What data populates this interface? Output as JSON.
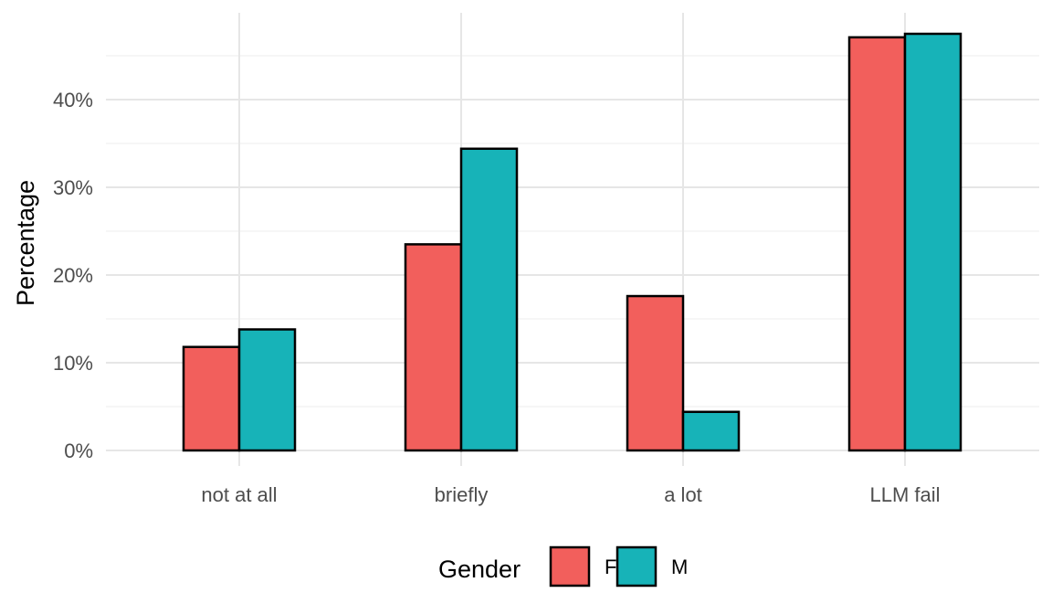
{
  "chart_data": {
    "type": "bar",
    "title": "",
    "xlabel": "",
    "ylabel": "Percentage",
    "categories": [
      "not at all",
      "briefly",
      "a lot",
      "LLM fail"
    ],
    "series": [
      {
        "name": "F",
        "color": "#F25F5C",
        "values": [
          11.8,
          23.5,
          17.6,
          47.1
        ]
      },
      {
        "name": "M",
        "color": "#17B3B8",
        "values": [
          13.8,
          34.4,
          4.4,
          47.5
        ]
      }
    ],
    "ylim": [
      0,
      50
    ],
    "yticks": [
      0,
      10,
      20,
      30,
      40
    ],
    "ytick_labels": [
      "0%",
      "10%",
      "20%",
      "30%",
      "40%"
    ],
    "grid": true,
    "legend": {
      "title": "Gender",
      "position": "bottom"
    }
  }
}
